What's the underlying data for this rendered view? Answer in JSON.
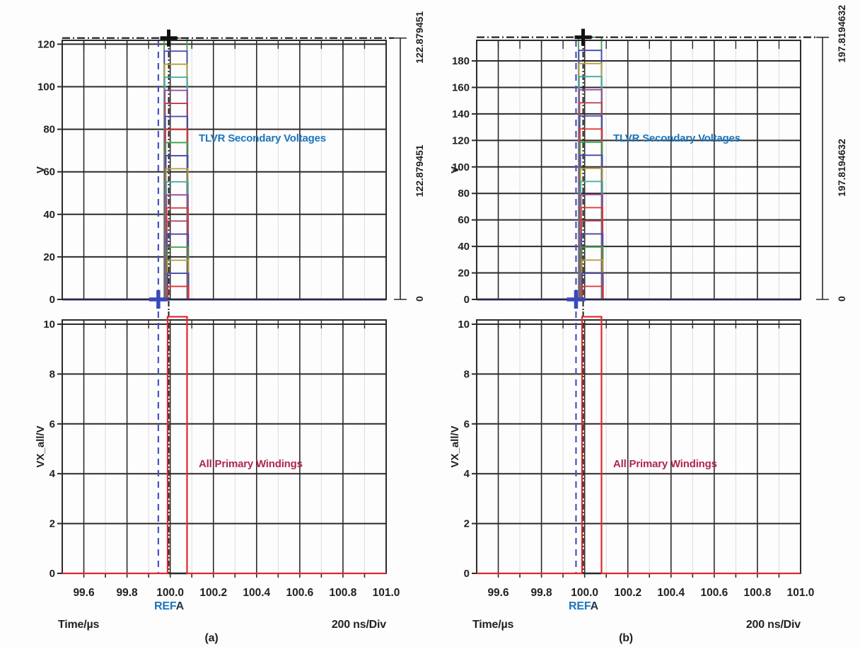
{
  "chart_data": [
    {
      "panel_caption": "(a)",
      "type": "line",
      "x_axis": {
        "label": "Time/µs",
        "scale_note": "200 ns/Div",
        "min": 99.5,
        "max": 101.0,
        "major_tick_step": 0.2,
        "minor_tick_step": 0.1,
        "tick_labels": [
          "99.6",
          "99.8",
          "100.0",
          "100.2",
          "100.4",
          "100.6",
          "100.8",
          "101.0"
        ]
      },
      "cursor": {
        "ref_label": "REF",
        "a_label": "A",
        "ref_x_us": 99.945,
        "a_x_us": 99.993,
        "ref_value_v": 0,
        "a_value_v": 122.879451
      },
      "ruler": {
        "top_label": "122.879451",
        "mid_label": "122.879451",
        "bottom_label": "0"
      },
      "secondary_chart": {
        "title": "TLVR Secondary Voltages",
        "ylabel": "V",
        "yticks": [
          0,
          20,
          40,
          60,
          80,
          100,
          120
        ],
        "y_plot_max": 121.8,
        "trace_count": 20,
        "stack_total_v": 122.879451,
        "peaks_v": [
          6.144,
          12.288,
          18.432,
          24.576,
          30.72,
          36.864,
          43.008,
          49.152,
          55.296,
          61.44,
          67.584,
          73.728,
          79.872,
          86.016,
          92.16,
          98.304,
          104.448,
          110.592,
          116.736,
          122.879451
        ],
        "pulse_start_us": 99.972,
        "pulse_end_us": 100.078,
        "baseline_v": 0
      },
      "primary_chart": {
        "title": "All Primary Windings",
        "ylabel": "VX_all/V",
        "yticks": [
          0,
          2,
          4,
          6,
          8,
          10
        ],
        "y_plot_max": 10.17,
        "pulse": {
          "start_us": 99.988,
          "end_us": 100.078,
          "peak_v": 10.3
        },
        "baseline_v": 0
      }
    },
    {
      "panel_caption": "(b)",
      "type": "line",
      "x_axis": {
        "label": "Time/µs",
        "scale_note": "200 ns/Div",
        "min": 99.5,
        "max": 101.0,
        "major_tick_step": 0.2,
        "minor_tick_step": 0.1,
        "tick_labels": [
          "99.6",
          "99.8",
          "100.0",
          "100.2",
          "100.4",
          "100.6",
          "100.8",
          "101.0"
        ]
      },
      "cursor": {
        "ref_label": "REF",
        "a_label": "A",
        "ref_x_us": 99.96,
        "a_x_us": 99.993,
        "ref_value_v": 0,
        "a_value_v": 197.8194632
      },
      "ruler": {
        "top_label": "197.8194632",
        "mid_label": "197.8194632",
        "bottom_label": "0"
      },
      "secondary_chart": {
        "title": "TLVR Secondary Voltages",
        "ylabel": "V",
        "yticks": [
          0,
          20,
          40,
          60,
          80,
          100,
          120,
          140,
          160,
          180
        ],
        "y_plot_max": 195.5,
        "trace_count": 20,
        "stack_total_v": 197.8194632,
        "peaks_v": [
          9.891,
          19.782,
          29.673,
          39.564,
          49.455,
          59.346,
          69.237,
          79.128,
          89.019,
          98.91,
          108.801,
          118.692,
          128.583,
          138.474,
          148.365,
          158.256,
          168.147,
          178.038,
          187.929,
          197.8194632
        ],
        "pulse_start_us": 99.972,
        "pulse_end_us": 100.078,
        "baseline_v": 0
      },
      "primary_chart": {
        "title": "All Primary Windings",
        "ylabel": "VX_all/V",
        "yticks": [
          0,
          2,
          4,
          6,
          8,
          10
        ],
        "y_plot_max": 10.17,
        "pulse": {
          "start_us": 99.988,
          "end_us": 100.078,
          "peak_v": 10.3
        },
        "baseline_v": 0
      }
    }
  ],
  "style": {
    "text_color": "#231f20",
    "blue_text": "#1b75bc",
    "crimson_text": "#b0274d",
    "grid_color": "#2e2a2b",
    "minor_grid_color": "#dcdcdc",
    "primary_trace_color": "#e0282e",
    "baseline_blue": "#4746b0",
    "ref_cursor_color": "#4a52c0",
    "ref_cross_color": "#3a4ab8",
    "a_cursor_color": "#231f20",
    "trace_colors": [
      "#3fa04a",
      "#4746b0",
      "#b1a23b",
      "#3fae9f",
      "#91499e",
      "#bd3a55",
      "#4746b0",
      "#e03434",
      "#3fa04a",
      "#4746b0",
      "#b1a23b",
      "#3fae9f",
      "#91499e",
      "#e03434",
      "#bd3a55",
      "#4746b0",
      "#3fa04a",
      "#b1a23b",
      "#4746b0",
      "#e03434"
    ]
  }
}
